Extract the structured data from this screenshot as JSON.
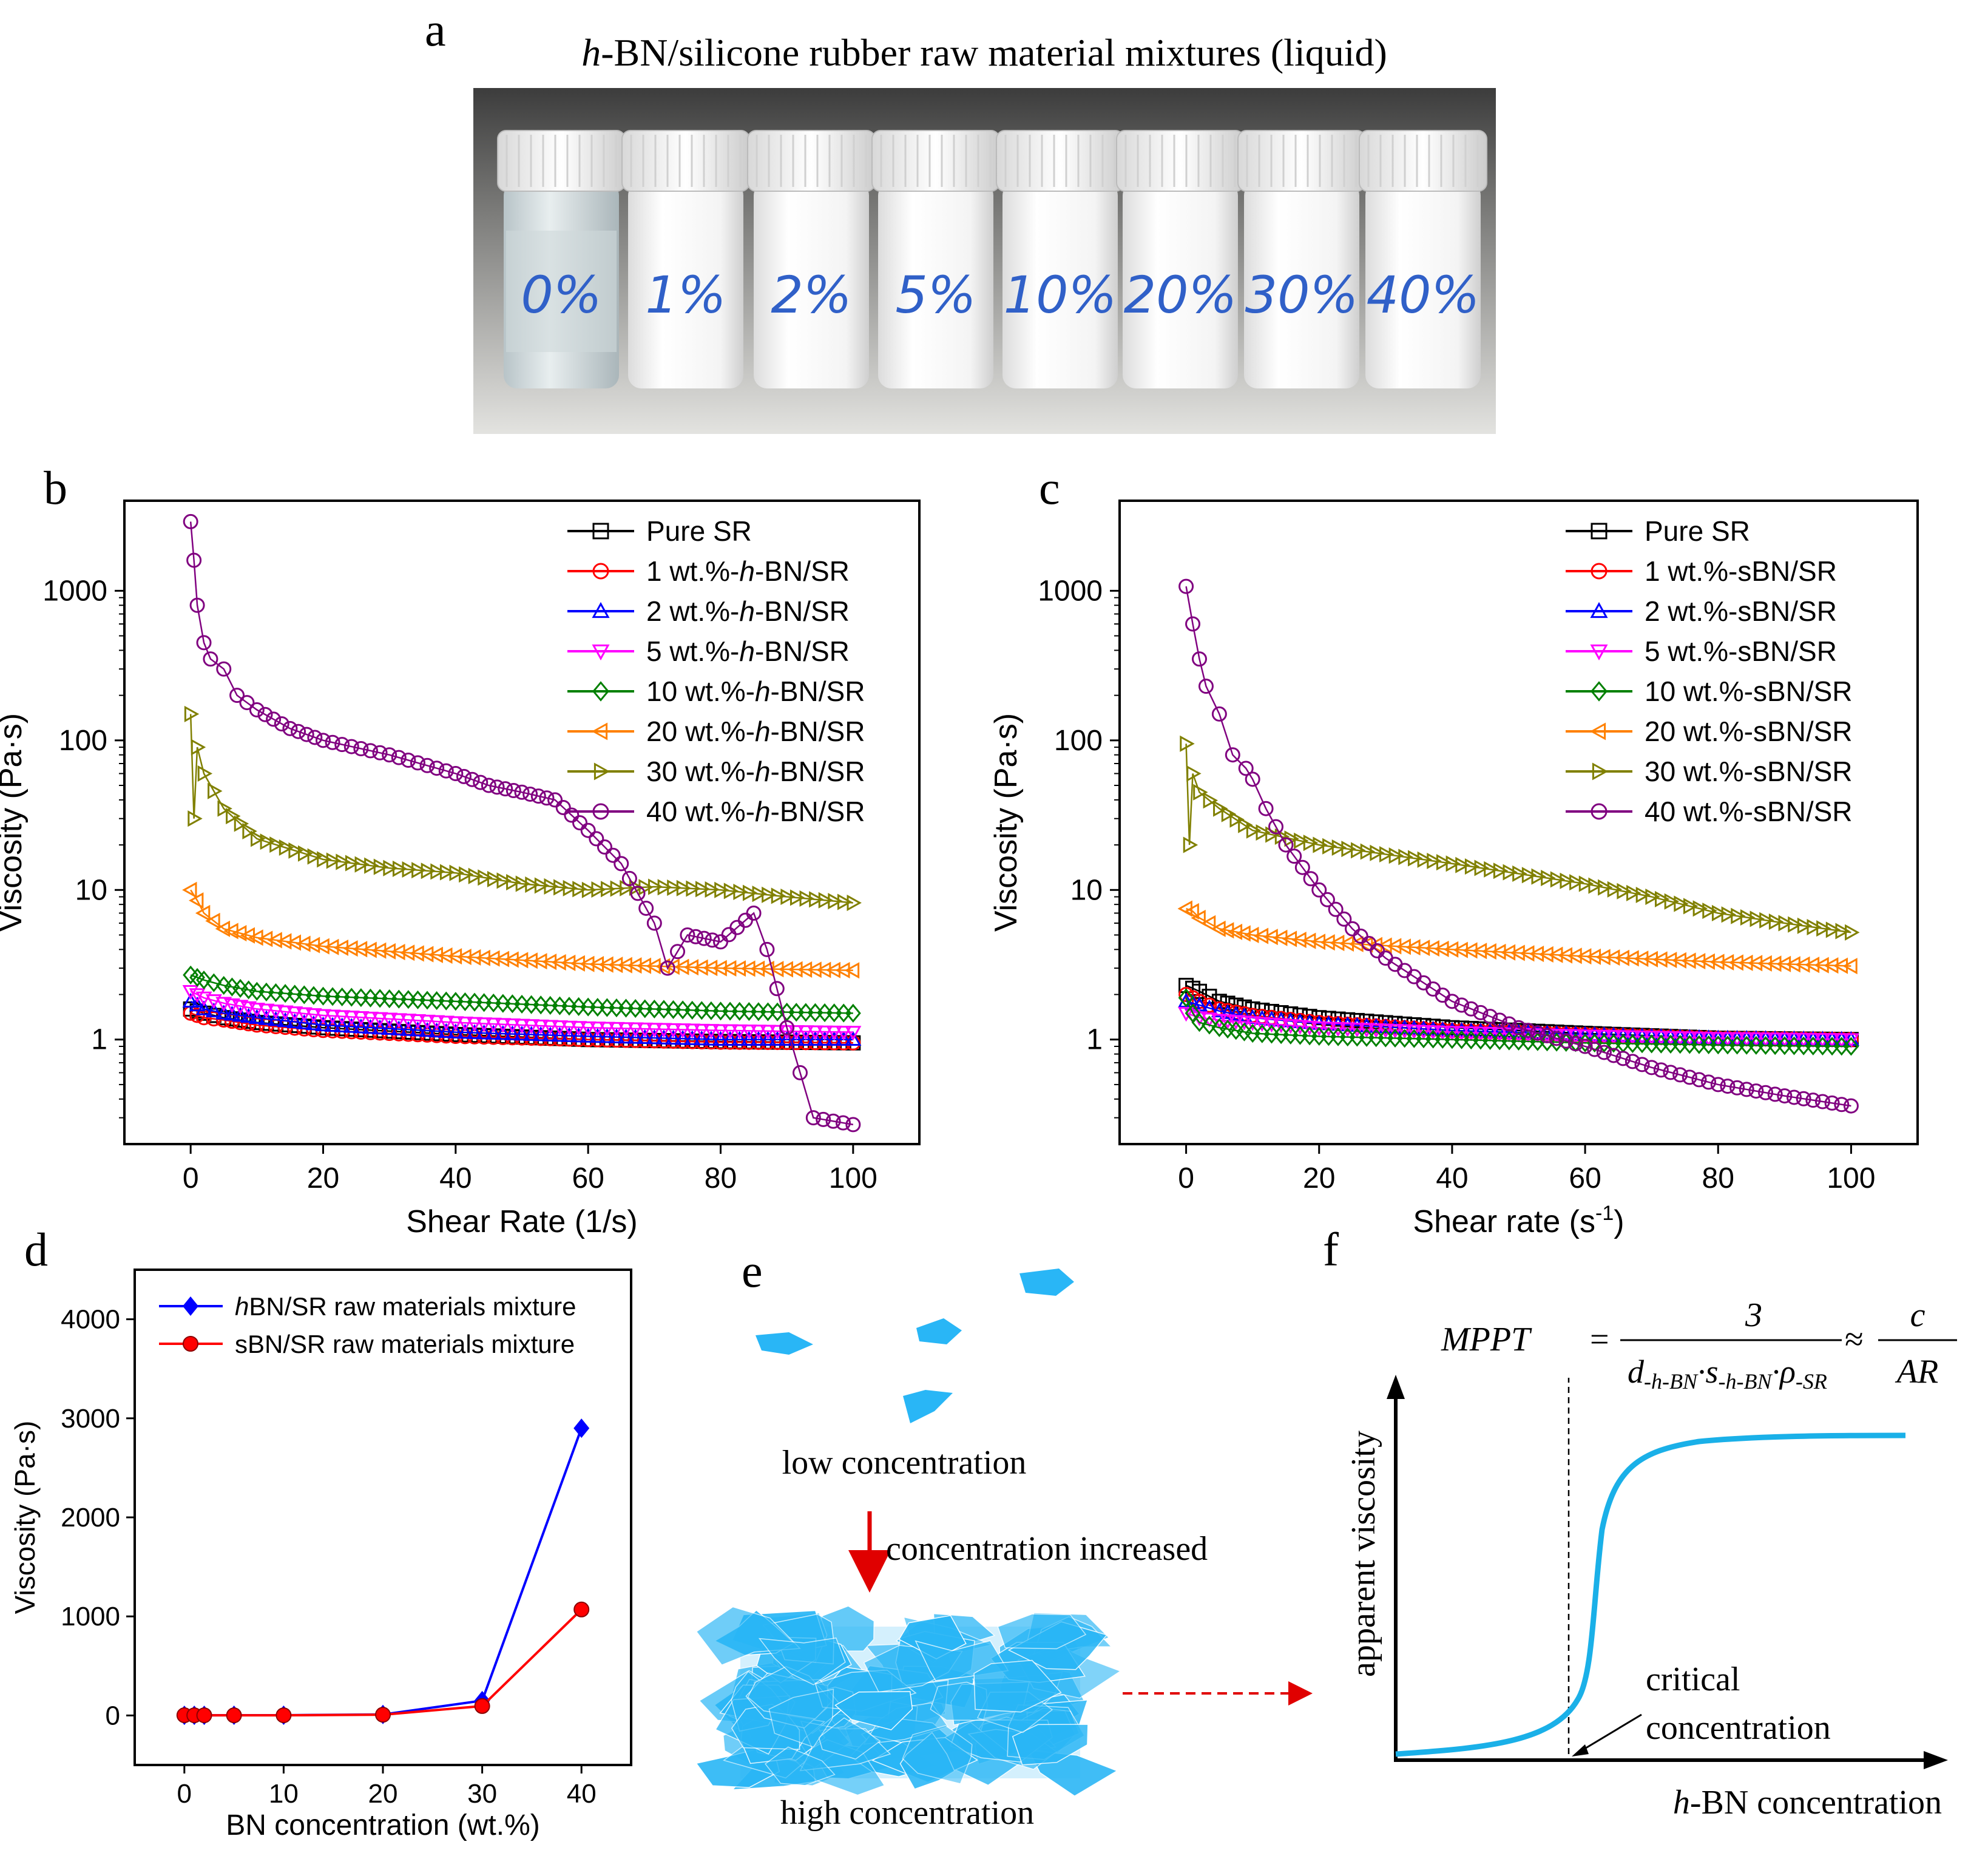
{
  "panel_letters": {
    "a": "a",
    "b": "b",
    "c": "c",
    "d": "d",
    "e": "e",
    "f": "f"
  },
  "panel_a": {
    "title_italic": "h",
    "title_rest": "-BN/silicone rubber raw material mixtures (liquid)",
    "vial_labels": [
      "0%",
      "1%",
      "2%",
      "5%",
      "10%",
      "20%",
      "30%",
      "40%"
    ]
  },
  "chart_data": [
    {
      "id": "b",
      "type": "scatter",
      "xlabel": "Shear Rate (1/s)",
      "ylabel": "Viscosity (Pa·s)",
      "xlim": [
        -10,
        110
      ],
      "ylim": [
        0.2,
        4000
      ],
      "yscale": "log",
      "xticks": [
        0,
        20,
        40,
        60,
        80,
        100
      ],
      "yticks": [
        1,
        10,
        100,
        1000
      ],
      "legend_position": "top-right",
      "series": [
        {
          "name": "Pure SR",
          "marker": "square",
          "color": "#000000",
          "points": [
            [
              0,
              1.6
            ],
            [
              1,
              1.55
            ],
            [
              2,
              1.5
            ],
            [
              5,
              1.4
            ],
            [
              10,
              1.3
            ],
            [
              20,
              1.2
            ],
            [
              40,
              1.08
            ],
            [
              60,
              1.0
            ],
            [
              80,
              0.97
            ],
            [
              100,
              0.95
            ]
          ]
        },
        {
          "name": "1 wt.%-h-BN/SR",
          "marker": "circle",
          "color": "#ff0000",
          "points": [
            [
              0,
              1.5
            ],
            [
              1,
              1.45
            ],
            [
              2,
              1.4
            ],
            [
              5,
              1.35
            ],
            [
              10,
              1.25
            ],
            [
              20,
              1.15
            ],
            [
              40,
              1.05
            ],
            [
              60,
              1.0
            ],
            [
              80,
              0.96
            ],
            [
              100,
              0.95
            ]
          ]
        },
        {
          "name": "2 wt.%-h-BN/SR",
          "marker": "triangle-up",
          "color": "#0000ff",
          "points": [
            [
              0,
              1.8
            ],
            [
              1,
              1.7
            ],
            [
              2,
              1.6
            ],
            [
              5,
              1.5
            ],
            [
              10,
              1.4
            ],
            [
              20,
              1.25
            ],
            [
              40,
              1.12
            ],
            [
              60,
              1.05
            ],
            [
              80,
              1.0
            ],
            [
              100,
              1.0
            ]
          ]
        },
        {
          "name": "5 wt.%-h-BN/SR",
          "marker": "triangle-down",
          "color": "#ff00ff",
          "points": [
            [
              0,
              2.1
            ],
            [
              1,
              2.0
            ],
            [
              2,
              1.9
            ],
            [
              5,
              1.75
            ],
            [
              10,
              1.6
            ],
            [
              20,
              1.45
            ],
            [
              40,
              1.3
            ],
            [
              60,
              1.2
            ],
            [
              80,
              1.15
            ],
            [
              100,
              1.12
            ]
          ]
        },
        {
          "name": "10 wt.%-h-BN/SR",
          "marker": "diamond",
          "color": "#008000",
          "points": [
            [
              0,
              2.7
            ],
            [
              1,
              2.6
            ],
            [
              2,
              2.5
            ],
            [
              5,
              2.3
            ],
            [
              10,
              2.1
            ],
            [
              20,
              1.95
            ],
            [
              40,
              1.8
            ],
            [
              60,
              1.65
            ],
            [
              80,
              1.55
            ],
            [
              100,
              1.5
            ]
          ]
        },
        {
          "name": "20 wt.%-h-BN/SR",
          "marker": "triangle-left",
          "color": "#ff8000",
          "points": [
            [
              0,
              10
            ],
            [
              1,
              8.5
            ],
            [
              2,
              7
            ],
            [
              5,
              5.5
            ],
            [
              10,
              4.8
            ],
            [
              20,
              4.2
            ],
            [
              40,
              3.6
            ],
            [
              60,
              3.2
            ],
            [
              80,
              3.0
            ],
            [
              100,
              2.9
            ]
          ]
        },
        {
          "name": "30 wt.%-h-BN/SR",
          "marker": "triangle-right",
          "color": "#808000",
          "points": [
            [
              0,
              150
            ],
            [
              0.5,
              30
            ],
            [
              1,
              90
            ],
            [
              2,
              60
            ],
            [
              5,
              35
            ],
            [
              10,
              22
            ],
            [
              20,
              16
            ],
            [
              30,
              14
            ],
            [
              40,
              13
            ],
            [
              50,
              11
            ],
            [
              60,
              10
            ],
            [
              70,
              10.5
            ],
            [
              80,
              10
            ],
            [
              90,
              9
            ],
            [
              100,
              8.2
            ]
          ]
        },
        {
          "name": "40 wt.%-h-BN/SR",
          "marker": "circle",
          "color": "#800080",
          "points": [
            [
              0,
              2900
            ],
            [
              0.5,
              1600
            ],
            [
              1,
              800
            ],
            [
              2,
              450
            ],
            [
              3,
              350
            ],
            [
              5,
              300
            ],
            [
              7,
              200
            ],
            [
              10,
              160
            ],
            [
              15,
              120
            ],
            [
              20,
              100
            ],
            [
              30,
              80
            ],
            [
              40,
              60
            ],
            [
              45,
              50
            ],
            [
              50,
              45
            ],
            [
              55,
              40
            ],
            [
              60,
              25
            ],
            [
              65,
              15
            ],
            [
              70,
              6
            ],
            [
              72,
              3
            ],
            [
              75,
              5
            ],
            [
              80,
              4.5
            ],
            [
              85,
              7
            ],
            [
              87,
              4
            ],
            [
              90,
              1.2
            ],
            [
              92,
              0.6
            ],
            [
              94,
              0.3
            ],
            [
              100,
              0.27
            ]
          ]
        }
      ]
    },
    {
      "id": "c",
      "type": "scatter",
      "xlabel_main": "Shear rate (s",
      "xlabel_sup": "-1",
      "xlabel_end": ")",
      "ylabel": "Viscosity (Pa·s)",
      "xlim": [
        -10,
        110
      ],
      "ylim": [
        0.2,
        4000
      ],
      "yscale": "log",
      "xticks": [
        0,
        20,
        40,
        60,
        80,
        100
      ],
      "yticks": [
        1,
        10,
        100,
        1000
      ],
      "legend_position": "top-right",
      "series": [
        {
          "name": "Pure SR",
          "marker": "square",
          "color": "#000000",
          "points": [
            [
              0,
              2.3
            ],
            [
              1,
              2.2
            ],
            [
              2,
              2.1
            ],
            [
              5,
              1.8
            ],
            [
              10,
              1.6
            ],
            [
              20,
              1.4
            ],
            [
              40,
              1.2
            ],
            [
              60,
              1.1
            ],
            [
              80,
              1.02
            ],
            [
              100,
              1.0
            ]
          ]
        },
        {
          "name": "1 wt.%-sBN/SR",
          "marker": "circle",
          "color": "#ff0000",
          "points": [
            [
              0,
              2.0
            ],
            [
              1,
              1.9
            ],
            [
              2,
              1.8
            ],
            [
              5,
              1.6
            ],
            [
              10,
              1.45
            ],
            [
              20,
              1.3
            ],
            [
              40,
              1.15
            ],
            [
              60,
              1.08
            ],
            [
              80,
              1.02
            ],
            [
              100,
              1.0
            ]
          ]
        },
        {
          "name": "2 wt.%-sBN/SR",
          "marker": "triangle-up",
          "color": "#0000ff",
          "points": [
            [
              0,
              1.8
            ],
            [
              1,
              1.75
            ],
            [
              2,
              1.7
            ],
            [
              5,
              1.55
            ],
            [
              10,
              1.4
            ],
            [
              20,
              1.28
            ],
            [
              40,
              1.15
            ],
            [
              60,
              1.08
            ],
            [
              80,
              1.02
            ],
            [
              100,
              1.0
            ]
          ]
        },
        {
          "name": "5 wt.%-sBN/SR",
          "marker": "triangle-down",
          "color": "#ff00ff",
          "points": [
            [
              0,
              1.5
            ],
            [
              1,
              1.45
            ],
            [
              2,
              1.4
            ],
            [
              5,
              1.35
            ],
            [
              10,
              1.3
            ],
            [
              20,
              1.2
            ],
            [
              40,
              1.12
            ],
            [
              60,
              1.06
            ],
            [
              80,
              1.02
            ],
            [
              100,
              1.0
            ]
          ]
        },
        {
          "name": "10 wt.%-sBN/SR",
          "marker": "diamond",
          "color": "#008000",
          "points": [
            [
              0,
              1.9
            ],
            [
              1,
              1.5
            ],
            [
              2,
              1.3
            ],
            [
              5,
              1.2
            ],
            [
              10,
              1.1
            ],
            [
              20,
              1.05
            ],
            [
              40,
              1.0
            ],
            [
              60,
              0.95
            ],
            [
              80,
              0.92
            ],
            [
              100,
              0.9
            ]
          ]
        },
        {
          "name": "20 wt.%-sBN/SR",
          "marker": "triangle-left",
          "color": "#ff8000",
          "points": [
            [
              0,
              7.5
            ],
            [
              1,
              7.2
            ],
            [
              2,
              6.5
            ],
            [
              5,
              5.5
            ],
            [
              10,
              5
            ],
            [
              20,
              4.5
            ],
            [
              40,
              4.0
            ],
            [
              60,
              3.6
            ],
            [
              80,
              3.3
            ],
            [
              100,
              3.1
            ]
          ]
        },
        {
          "name": "30 wt.%-sBN/SR",
          "marker": "triangle-right",
          "color": "#808000",
          "points": [
            [
              0,
              95
            ],
            [
              0.5,
              20
            ],
            [
              1,
              60
            ],
            [
              2,
              45
            ],
            [
              5,
              35
            ],
            [
              10,
              25
            ],
            [
              20,
              20
            ],
            [
              40,
              15
            ],
            [
              60,
              11
            ],
            [
              70,
              9
            ],
            [
              80,
              7
            ],
            [
              90,
              6
            ],
            [
              100,
              5.2
            ]
          ]
        },
        {
          "name": "40 wt.%-sBN/SR",
          "marker": "circle",
          "color": "#800080",
          "points": [
            [
              0,
              1070
            ],
            [
              1,
              600
            ],
            [
              2,
              350
            ],
            [
              3,
              230
            ],
            [
              5,
              150
            ],
            [
              7,
              80
            ],
            [
              9,
              65
            ],
            [
              10,
              55
            ],
            [
              12,
              35
            ],
            [
              15,
              20
            ],
            [
              20,
              10
            ],
            [
              25,
              5.5
            ],
            [
              30,
              3.5
            ],
            [
              40,
              1.8
            ],
            [
              50,
              1.2
            ],
            [
              60,
              0.9
            ],
            [
              70,
              0.65
            ],
            [
              80,
              0.5
            ],
            [
              90,
              0.42
            ],
            [
              100,
              0.36
            ]
          ]
        }
      ]
    },
    {
      "id": "d",
      "type": "line",
      "xlabel": "BN concentration (wt.%)",
      "ylabel": "Viscosity (Pa·s)",
      "xlim": [
        -5,
        45
      ],
      "ylim": [
        -500,
        4500
      ],
      "xticks": [
        0,
        10,
        20,
        30,
        40
      ],
      "yticks": [
        0,
        1000,
        2000,
        3000,
        4000
      ],
      "legend_position": "top-left",
      "series": [
        {
          "name_italic": "h",
          "name": "BN/SR raw materials mixture",
          "marker": "diamond",
          "color": "#0000ff",
          "x": [
            0,
            1,
            2,
            5,
            10,
            20,
            30,
            40
          ],
          "values": [
            1.6,
            1.5,
            1.8,
            2.1,
            2.7,
            10,
            150,
            2900
          ]
        },
        {
          "name": "sBN/SR raw materials mixture",
          "marker": "circle",
          "color": "#ff0000",
          "x": [
            0,
            1,
            2,
            5,
            10,
            20,
            30,
            40
          ],
          "values": [
            2.3,
            2.0,
            1.8,
            1.5,
            1.9,
            7.5,
            95,
            1070
          ]
        }
      ]
    }
  ],
  "panel_e": {
    "low_label": "low concentration",
    "arrow_label": "concentration increased",
    "high_label": "high concentration",
    "flake_color": "#29b6f6"
  },
  "panel_f": {
    "ylabel": "apparent viscosity",
    "xlabel_italic": "h",
    "xlabel_rest": "-BN concentration",
    "critical_line1": "critical",
    "critical_line2": "concentration",
    "eq_lhs": "MPPT",
    "eq_num": "3",
    "eq_den_d": "d",
    "eq_den_d_sub": "-h-BN",
    "eq_den_s": "s",
    "eq_den_s_sub": "-h-BN",
    "eq_den_rho": "ρ",
    "eq_den_rho_sub": "-SR",
    "eq_num2": "c",
    "eq_den2": "AR",
    "curve_color": "#1ab0e8"
  }
}
